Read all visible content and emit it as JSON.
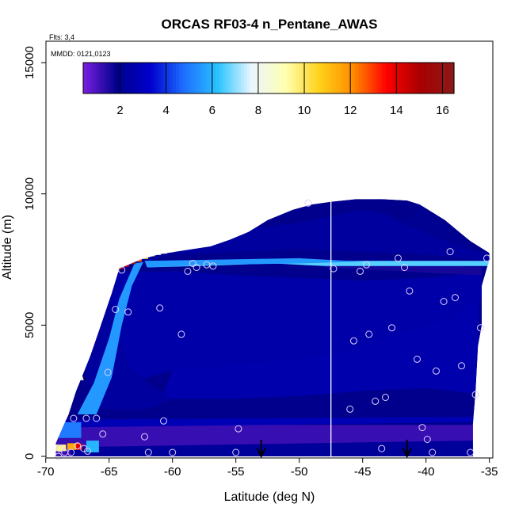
{
  "chart_data": {
    "type": "heatmap",
    "title": "ORCAS RF03-4 n_Pentane_AWAS",
    "notes": {
      "flights": "Flts: 3,4",
      "dates": "MMDD: 0121,0123"
    },
    "xlabel": "Latitude (deg N)",
    "ylabel": "Altitude (m)",
    "xlim": [
      -70,
      -35
    ],
    "ylim": [
      0,
      16000
    ],
    "x_ticks": [
      -70,
      -65,
      -60,
      -55,
      -50,
      -45,
      -40,
      -35
    ],
    "x_tick_labels": [
      "-70",
      "-65",
      "-60",
      "-55",
      "-50",
      "-45",
      "-40",
      "-35"
    ],
    "y_ticks": [
      0,
      5000,
      10000,
      15000
    ],
    "y_tick_labels": [
      "0",
      "5000",
      "10000",
      "15000"
    ],
    "colorbar": {
      "range": [
        0.4,
        16.5
      ],
      "ticks": [
        2,
        4,
        6,
        8,
        10,
        12,
        14,
        16
      ],
      "tick_labels": [
        "2",
        "4",
        "6",
        "8",
        "10",
        "12",
        "14",
        "16"
      ],
      "palette": [
        "#7a1fe0",
        "#00008b",
        "#0000cd",
        "#1e6fff",
        "#29c4ff",
        "#eaf6ff",
        "#ffffb0",
        "#ffd21a",
        "#ff8c00",
        "#ff0000",
        "#a80000",
        "#8b1a1a"
      ]
    },
    "envelope": [
      [
        -69.2,
        0
      ],
      [
        -69.2,
        500
      ],
      [
        -68.2,
        1600
      ],
      [
        -67.6,
        2500
      ],
      [
        -66.5,
        3800
      ],
      [
        -65.5,
        5200
      ],
      [
        -64.8,
        6200
      ],
      [
        -64.2,
        7150
      ],
      [
        -62.5,
        7500
      ],
      [
        -61,
        7700
      ],
      [
        -59,
        7850
      ],
      [
        -57,
        8000
      ],
      [
        -55.5,
        8250
      ],
      [
        -54,
        8550
      ],
      [
        -52.5,
        9000
      ],
      [
        -50.5,
        9400
      ],
      [
        -49,
        9600
      ],
      [
        -47.5,
        9700
      ],
      [
        -45.5,
        9800
      ],
      [
        -43.5,
        9800
      ],
      [
        -41.5,
        9750
      ],
      [
        -40.5,
        9600
      ],
      [
        -39.5,
        9300
      ],
      [
        -38.5,
        9000
      ],
      [
        -37.5,
        8600
      ],
      [
        -36.5,
        8200
      ],
      [
        -35,
        7750
      ],
      [
        -35,
        7500
      ],
      [
        -35.6,
        6500
      ],
      [
        -35.6,
        5000
      ],
      [
        -35.9,
        4200
      ],
      [
        -36.1,
        2400
      ],
      [
        -36.3,
        1200
      ],
      [
        -36.3,
        0
      ]
    ],
    "regions": [
      {
        "value": 1.2,
        "points": [
          [
            -69.2,
            0
          ],
          [
            -36.3,
            0
          ],
          [
            -36.3,
            1200
          ],
          [
            -69.2,
            1200
          ]
        ]
      },
      {
        "value": 2.2,
        "points": [
          [
            -68,
            0
          ],
          [
            -36.3,
            0
          ],
          [
            -36.3,
            600
          ],
          [
            -68,
            350
          ]
        ]
      },
      {
        "value": 2.8,
        "points": [
          [
            -69,
            1100
          ],
          [
            -36.3,
            1300
          ],
          [
            -36.3,
            1500
          ],
          [
            -69,
            1400
          ]
        ]
      },
      {
        "value": 2.5,
        "points": [
          [
            -66,
            7000
          ],
          [
            -60,
            7050
          ],
          [
            -55,
            6900
          ],
          [
            -50,
            6800
          ],
          [
            -45,
            6700
          ],
          [
            -40,
            6800
          ],
          [
            -35.6,
            7000
          ],
          [
            -35.6,
            6000
          ],
          [
            -38,
            5300
          ],
          [
            -42,
            4700
          ],
          [
            -46,
            4100
          ],
          [
            -50,
            3700
          ],
          [
            -55,
            3500
          ],
          [
            -60,
            3300
          ],
          [
            -62,
            3000
          ],
          [
            -63,
            2800
          ],
          [
            -64.5,
            3500
          ],
          [
            -66,
            5500
          ]
        ]
      },
      {
        "value": 2.3,
        "points": [
          [
            -65,
            8550
          ],
          [
            -55,
            8600
          ],
          [
            -50,
            8900
          ],
          [
            -47,
            9200
          ],
          [
            -45,
            9400
          ],
          [
            -43,
            9200
          ],
          [
            -42,
            8900
          ],
          [
            -40,
            8500
          ],
          [
            -38,
            8100
          ],
          [
            -35,
            7700
          ],
          [
            -35,
            7450
          ],
          [
            -40,
            7700
          ],
          [
            -45,
            7800
          ],
          [
            -50,
            7900
          ],
          [
            -55,
            7800
          ],
          [
            -60,
            7700
          ],
          [
            -64.2,
            7150
          ]
        ]
      },
      {
        "value": 1.6,
        "points": [
          [
            -48,
            7500
          ],
          [
            -35.6,
            7200
          ],
          [
            -35.6,
            6900
          ],
          [
            -40,
            7000
          ],
          [
            -48,
            7200
          ]
        ]
      },
      {
        "value": 2.0,
        "points": [
          [
            -42,
            8900
          ],
          [
            -38,
            8100
          ],
          [
            -36,
            7800
          ],
          [
            -38,
            8600
          ],
          [
            -40.5,
            9500
          ]
        ]
      },
      {
        "value": 2.6,
        "points": [
          [
            -60,
            3300
          ],
          [
            -55,
            3500
          ],
          [
            -50,
            3700
          ],
          [
            -46,
            4100
          ],
          [
            -42,
            4700
          ],
          [
            -38,
            5300
          ],
          [
            -35.8,
            6000
          ],
          [
            -35.9,
            4200
          ],
          [
            -36.1,
            2400
          ],
          [
            -40,
            2600
          ],
          [
            -45,
            2500
          ],
          [
            -50,
            2300
          ],
          [
            -55,
            2200
          ],
          [
            -60,
            2200
          ],
          [
            -61,
            2000
          ]
        ]
      },
      {
        "value": 2.3,
        "points": [
          [
            -66,
            1800
          ],
          [
            -62,
            1800
          ],
          [
            -61,
            2000
          ],
          [
            -60,
            2200
          ],
          [
            -62,
            2800
          ],
          [
            -63.5,
            3500
          ],
          [
            -64.5,
            5000
          ],
          [
            -65,
            6500
          ],
          [
            -66,
            6000
          ],
          [
            -67,
            3500
          ]
        ]
      },
      {
        "value": 6.6,
        "points": [
          [
            -62,
            7450
          ],
          [
            -35,
            7450
          ],
          [
            -35,
            7250
          ],
          [
            -48,
            7250
          ],
          [
            -52,
            7350
          ],
          [
            -58,
            7250
          ],
          [
            -62,
            7200
          ]
        ]
      },
      {
        "value": 5.5,
        "points": [
          [
            -62.2,
            7450
          ],
          [
            -50,
            7550
          ],
          [
            -45,
            7420
          ],
          [
            -50,
            7350
          ],
          [
            -57,
            7300
          ],
          [
            -62,
            7200
          ]
        ]
      },
      {
        "value": 5.5,
        "points": [
          [
            -67.5,
            1600
          ],
          [
            -66,
            1600
          ],
          [
            -64.8,
            3000
          ],
          [
            -64,
            5000
          ],
          [
            -63.2,
            6500
          ],
          [
            -62.3,
            7400
          ],
          [
            -63,
            7350
          ],
          [
            -64.2,
            6000
          ],
          [
            -65,
            4500
          ],
          [
            -66.2,
            2800
          ]
        ]
      },
      {
        "value": 5.0,
        "points": [
          [
            -69.2,
            1300
          ],
          [
            -67.2,
            1300
          ],
          [
            -67.2,
            700
          ],
          [
            -69.2,
            700
          ]
        ]
      },
      {
        "value": 9.5,
        "points": [
          [
            -69.2,
            450
          ],
          [
            -68.4,
            450
          ],
          [
            -68.4,
            200
          ],
          [
            -69.2,
            200
          ]
        ]
      },
      {
        "value": 11.5,
        "points": [
          [
            -68.3,
            500
          ],
          [
            -67.3,
            500
          ],
          [
            -67.3,
            250
          ],
          [
            -68.3,
            250
          ]
        ]
      },
      {
        "value": 14.0,
        "points": [
          [
            -67.6,
            480
          ],
          [
            -67.1,
            480
          ],
          [
            -67.1,
            250
          ],
          [
            -67.6,
            250
          ]
        ]
      },
      {
        "value": 6.0,
        "points": [
          [
            -66.8,
            600
          ],
          [
            -65.8,
            600
          ],
          [
            -65.8,
            150
          ],
          [
            -66.8,
            150
          ]
        ]
      },
      {
        "value": 8.5,
        "points": [
          [
            -69.2,
            2500
          ],
          [
            -68.6,
            2500
          ],
          [
            -68.3,
            2000
          ],
          [
            -69.2,
            2000
          ]
        ]
      },
      {
        "value": 8.5,
        "points": [
          [
            -68,
            3500
          ],
          [
            -67.4,
            3500
          ],
          [
            -67,
            2900
          ],
          [
            -67.6,
            2900
          ]
        ]
      }
    ],
    "edge_gradient": [
      {
        "lat": -68.9,
        "alt": 1800,
        "value": 8.0
      },
      {
        "lat": -68.5,
        "alt": 2400,
        "value": 9.0
      },
      {
        "lat": -68.1,
        "alt": 3000,
        "value": 10.0
      },
      {
        "lat": -67.7,
        "alt": 3600,
        "value": 10.5
      },
      {
        "lat": -67.3,
        "alt": 4200,
        "value": 11.0
      },
      {
        "lat": -66.9,
        "alt": 4800,
        "value": 12.0
      },
      {
        "lat": -66.5,
        "alt": 5300,
        "value": 11.5
      },
      {
        "lat": -66.1,
        "alt": 5800,
        "value": 10.5
      },
      {
        "lat": -65.7,
        "alt": 6300,
        "value": 11.0
      },
      {
        "lat": -65.3,
        "alt": 6700,
        "value": 12.5
      },
      {
        "lat": -64.8,
        "alt": 7000,
        "value": 14.0
      },
      {
        "lat": -64.3,
        "alt": 7150,
        "value": 15.0
      },
      {
        "lat": -63.8,
        "alt": 7250,
        "value": 14.5
      },
      {
        "lat": -63.3,
        "alt": 7350,
        "value": 16.0
      },
      {
        "lat": -62.8,
        "alt": 7450,
        "value": 12.5
      },
      {
        "lat": -62.3,
        "alt": 7550,
        "value": 11.0
      },
      {
        "lat": -61.8,
        "alt": 7650,
        "value": 10.5
      },
      {
        "lat": -61.3,
        "alt": 7700,
        "value": 9.0
      },
      {
        "lat": -60.8,
        "alt": 7750,
        "value": 10.0
      },
      {
        "lat": -60.3,
        "alt": 7800,
        "value": 8.5
      },
      {
        "lat": -59.8,
        "alt": 7850,
        "value": 9.0
      }
    ],
    "samples": [
      [
        -69.0,
        0
      ],
      [
        -68.9,
        300
      ],
      [
        -68.5,
        150
      ],
      [
        -68.0,
        150
      ],
      [
        -67.5,
        400
      ],
      [
        -67.0,
        300
      ],
      [
        -66.7,
        200
      ],
      [
        -67.8,
        1450
      ],
      [
        -66.8,
        1450
      ],
      [
        -66.0,
        1450
      ],
      [
        -65.5,
        850
      ],
      [
        -65.1,
        3200
      ],
      [
        -64.5,
        5600
      ],
      [
        -63.5,
        5500
      ],
      [
        -62.2,
        750
      ],
      [
        -61.9,
        150
      ],
      [
        -60.7,
        1350
      ],
      [
        -60.0,
        150
      ],
      [
        -59.3,
        4650
      ],
      [
        -61.0,
        5650
      ],
      [
        -64.0,
        7100
      ],
      [
        -58.8,
        7050
      ],
      [
        -58.4,
        7350
      ],
      [
        -58.1,
        7200
      ],
      [
        -57.3,
        7300
      ],
      [
        -56.8,
        7250
      ],
      [
        -55.0,
        150
      ],
      [
        -54.8,
        1050
      ],
      [
        -49.3,
        9650
      ],
      [
        -47.3,
        7150
      ],
      [
        -46.0,
        1800
      ],
      [
        -45.7,
        4400
      ],
      [
        -45.2,
        7050
      ],
      [
        -44.7,
        7300
      ],
      [
        -44.5,
        4650
      ],
      [
        -44.0,
        2100
      ],
      [
        -43.5,
        300
      ],
      [
        -43.2,
        2250
      ],
      [
        -42.7,
        4900
      ],
      [
        -42.2,
        7550
      ],
      [
        -41.7,
        7200
      ],
      [
        -41.3,
        6300
      ],
      [
        -40.7,
        3700
      ],
      [
        -40.3,
        1100
      ],
      [
        -39.9,
        650
      ],
      [
        -39.5,
        150
      ],
      [
        -39.2,
        3250
      ],
      [
        -38.6,
        5900
      ],
      [
        -38.1,
        7800
      ],
      [
        -37.7,
        6050
      ],
      [
        -37.2,
        3450
      ],
      [
        -36.5,
        150
      ],
      [
        -36.1,
        2350
      ],
      [
        -35.7,
        4900
      ],
      [
        -35.2,
        7550
      ]
    ],
    "vertical_line_lat": -47.5,
    "arrows_lat": [
      -53.0,
      -41.5
    ],
    "colors": {
      "sample_ring": "#dcd0ff",
      "vline": "#ffffff",
      "arrow": "#000000"
    }
  }
}
